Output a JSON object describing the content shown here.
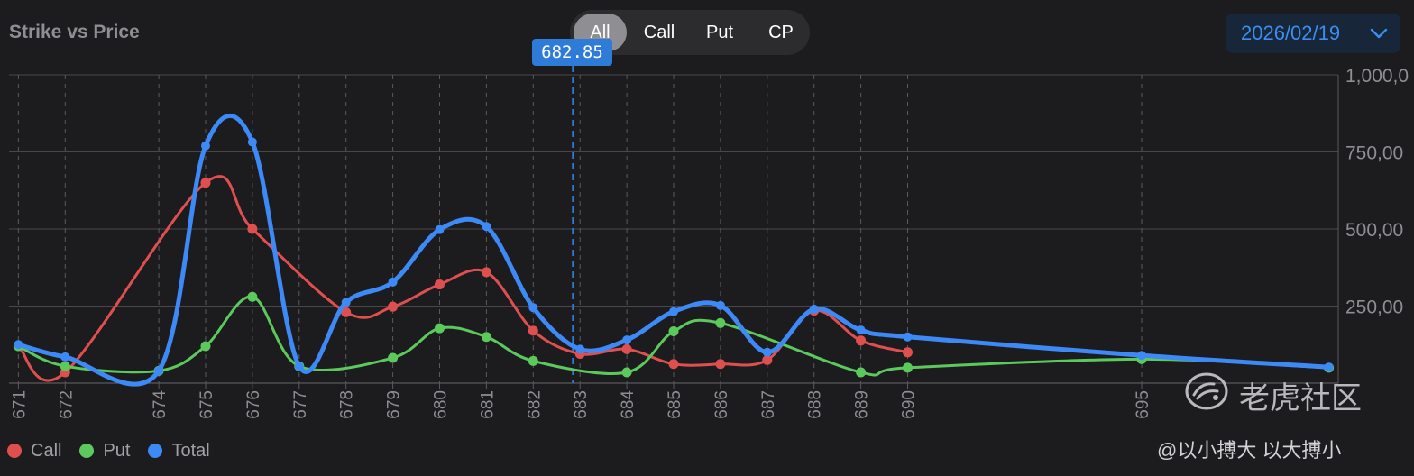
{
  "header": {
    "title": "Strike vs Price",
    "filter_tabs": [
      {
        "label": "All",
        "active": true
      },
      {
        "label": "Call",
        "active": false
      },
      {
        "label": "Put",
        "active": false
      },
      {
        "label": "CP",
        "active": false
      }
    ],
    "date_selector": {
      "value": "2026/02/19",
      "icon": "chevron-down-icon"
    }
  },
  "current_price_label": "682.85",
  "colors": {
    "background": "#1c1c1e",
    "call": "#e04f4f",
    "put": "#5cc95c",
    "total": "#3d8af7",
    "price_line": "#2f7cd8",
    "grid": "#48484a"
  },
  "chart_data": {
    "type": "line",
    "x_ticks": [
      "671",
      "672",
      "674",
      "675",
      "676",
      "677",
      "678",
      "679",
      "680",
      "681",
      "682",
      "683",
      "684",
      "685",
      "686",
      "687",
      "688",
      "689",
      "690",
      "695"
    ],
    "xlim": [
      670.8,
      699.2
    ],
    "ylim": [
      0,
      1000000
    ],
    "y_ticks": [
      250000,
      500000,
      750000,
      1000000
    ],
    "y_tick_labels": [
      "250,00",
      "500,00",
      "750,00",
      "1,000,0"
    ],
    "current_price": 682.85,
    "grid": true,
    "legend_position": "bottom-left",
    "series": [
      {
        "name": "Call",
        "color": "#e04f4f",
        "points": [
          [
            671,
            120000
          ],
          [
            672,
            35000
          ],
          [
            675,
            650000
          ],
          [
            676,
            500000
          ],
          [
            678,
            230000
          ],
          [
            679,
            248000
          ],
          [
            680,
            320000
          ],
          [
            681,
            360000
          ],
          [
            682,
            170000
          ],
          [
            683,
            95000
          ],
          [
            684,
            110000
          ],
          [
            685,
            62000
          ],
          [
            686,
            62000
          ],
          [
            687,
            75000
          ],
          [
            688,
            235000
          ],
          [
            689,
            138000
          ],
          [
            690,
            100000
          ]
        ]
      },
      {
        "name": "Put",
        "color": "#5cc95c",
        "points": [
          [
            671,
            120000
          ],
          [
            672,
            55000
          ],
          [
            674,
            40000
          ],
          [
            675,
            120000
          ],
          [
            676,
            280000
          ],
          [
            677,
            55000
          ],
          [
            679,
            82000
          ],
          [
            680,
            178000
          ],
          [
            681,
            150000
          ],
          [
            682,
            72000
          ],
          [
            684,
            35000
          ],
          [
            685,
            168000
          ],
          [
            686,
            195000
          ],
          [
            689,
            35000
          ],
          [
            690,
            50000
          ],
          [
            695,
            78000
          ],
          [
            699,
            50000
          ]
        ]
      },
      {
        "name": "Total",
        "color": "#3d8af7",
        "points": [
          [
            671,
            125000
          ],
          [
            672,
            85000
          ],
          [
            674,
            40000
          ],
          [
            675,
            770000
          ],
          [
            676,
            782000
          ],
          [
            677,
            55000
          ],
          [
            678,
            262000
          ],
          [
            679,
            328000
          ],
          [
            680,
            498000
          ],
          [
            681,
            508000
          ],
          [
            682,
            245000
          ],
          [
            683,
            110000
          ],
          [
            684,
            140000
          ],
          [
            685,
            232000
          ],
          [
            686,
            252000
          ],
          [
            687,
            100000
          ],
          [
            688,
            240000
          ],
          [
            689,
            172000
          ],
          [
            690,
            150000
          ],
          [
            695,
            90000
          ],
          [
            699,
            52000
          ]
        ]
      }
    ]
  },
  "watermark": {
    "logo_icon": "tiger-logo-icon",
    "name": "老虎社区",
    "user": "@以小搏大 以大搏小"
  }
}
